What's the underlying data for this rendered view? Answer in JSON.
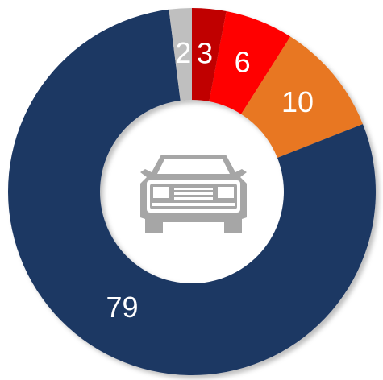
{
  "chart_data": {
    "type": "donut",
    "categories": [
      null,
      null,
      null,
      null,
      null
    ],
    "values": [
      3,
      6,
      10,
      79,
      2
    ],
    "colors": [
      "#c00000",
      "#ff0000",
      "#e87722",
      "#1f3864",
      "#bfbfbf"
    ]
  }
}
